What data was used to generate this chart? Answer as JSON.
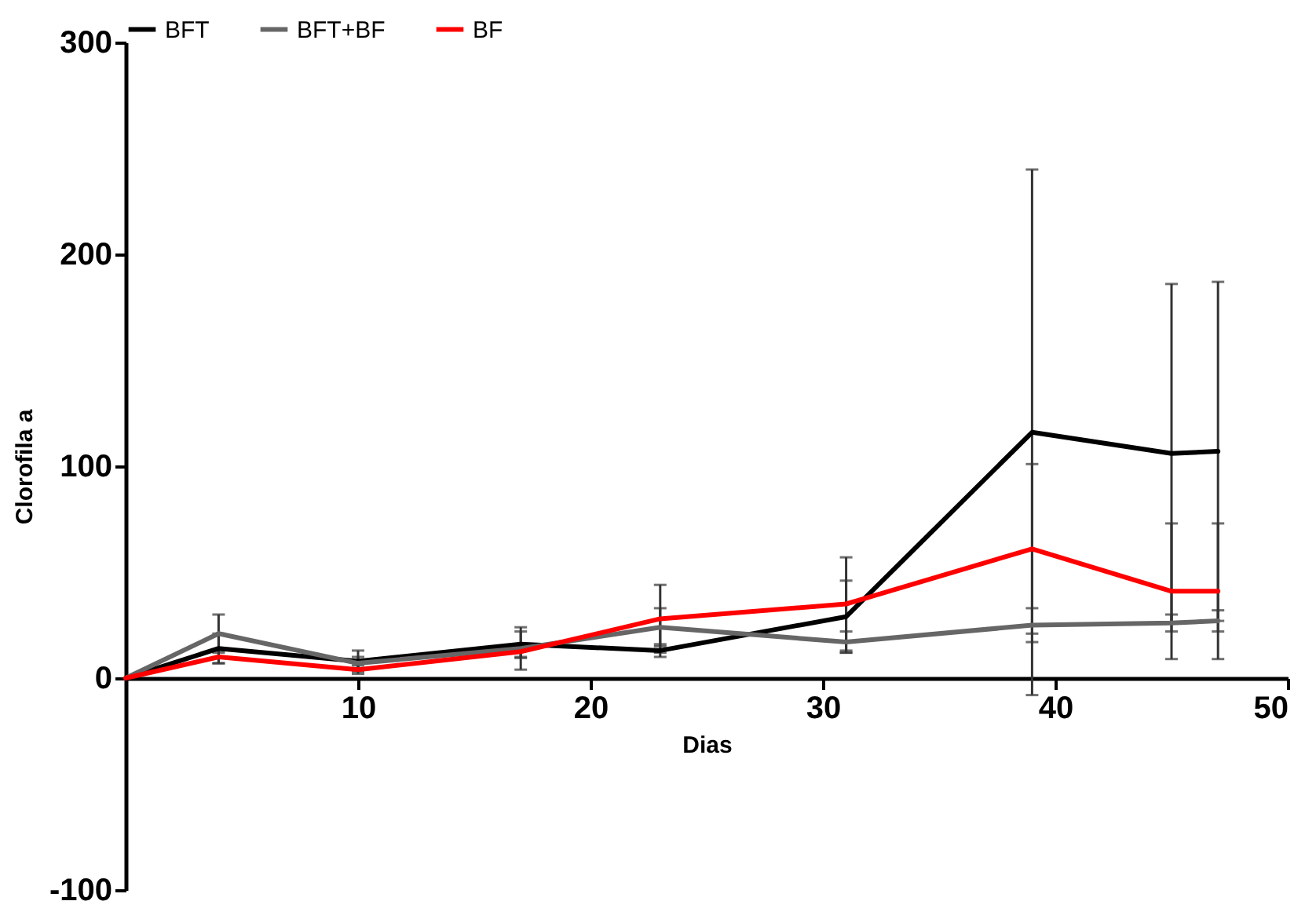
{
  "chart_data": {
    "type": "line",
    "xlabel": "Dias",
    "ylabel": "Clorofila a",
    "x": [
      0,
      4,
      10,
      17,
      23,
      31,
      39,
      45,
      47
    ],
    "series": [
      {
        "name": "BFT",
        "color": "#000000",
        "values": [
          0,
          14,
          8,
          16,
          13,
          29,
          116,
          106,
          107
        ],
        "errors": [
          null,
          7,
          5,
          6,
          3,
          17,
          124,
          80,
          80
        ]
      },
      {
        "name": "BFT+BF",
        "color": "#666666",
        "values": [
          0,
          21,
          7,
          14,
          24,
          17,
          25,
          26,
          27
        ],
        "errors": [
          null,
          9,
          3,
          10,
          9,
          5,
          8,
          4,
          5
        ]
      },
      {
        "name": "BF",
        "color": "#ff0000",
        "values": [
          0,
          10,
          4,
          12.5,
          28,
          35,
          61,
          41,
          41
        ],
        "errors": [
          null,
          3,
          2,
          3,
          16,
          22,
          40,
          32,
          32
        ]
      }
    ],
    "xlim": [
      0,
      50
    ],
    "xticks": [
      10,
      20,
      30,
      40,
      50
    ],
    "ylim": [
      -100,
      300
    ],
    "yticks": [
      -100,
      0,
      100,
      200,
      300
    ],
    "grid": false,
    "legend": "top",
    "marker": "none",
    "line_style": "solid"
  }
}
